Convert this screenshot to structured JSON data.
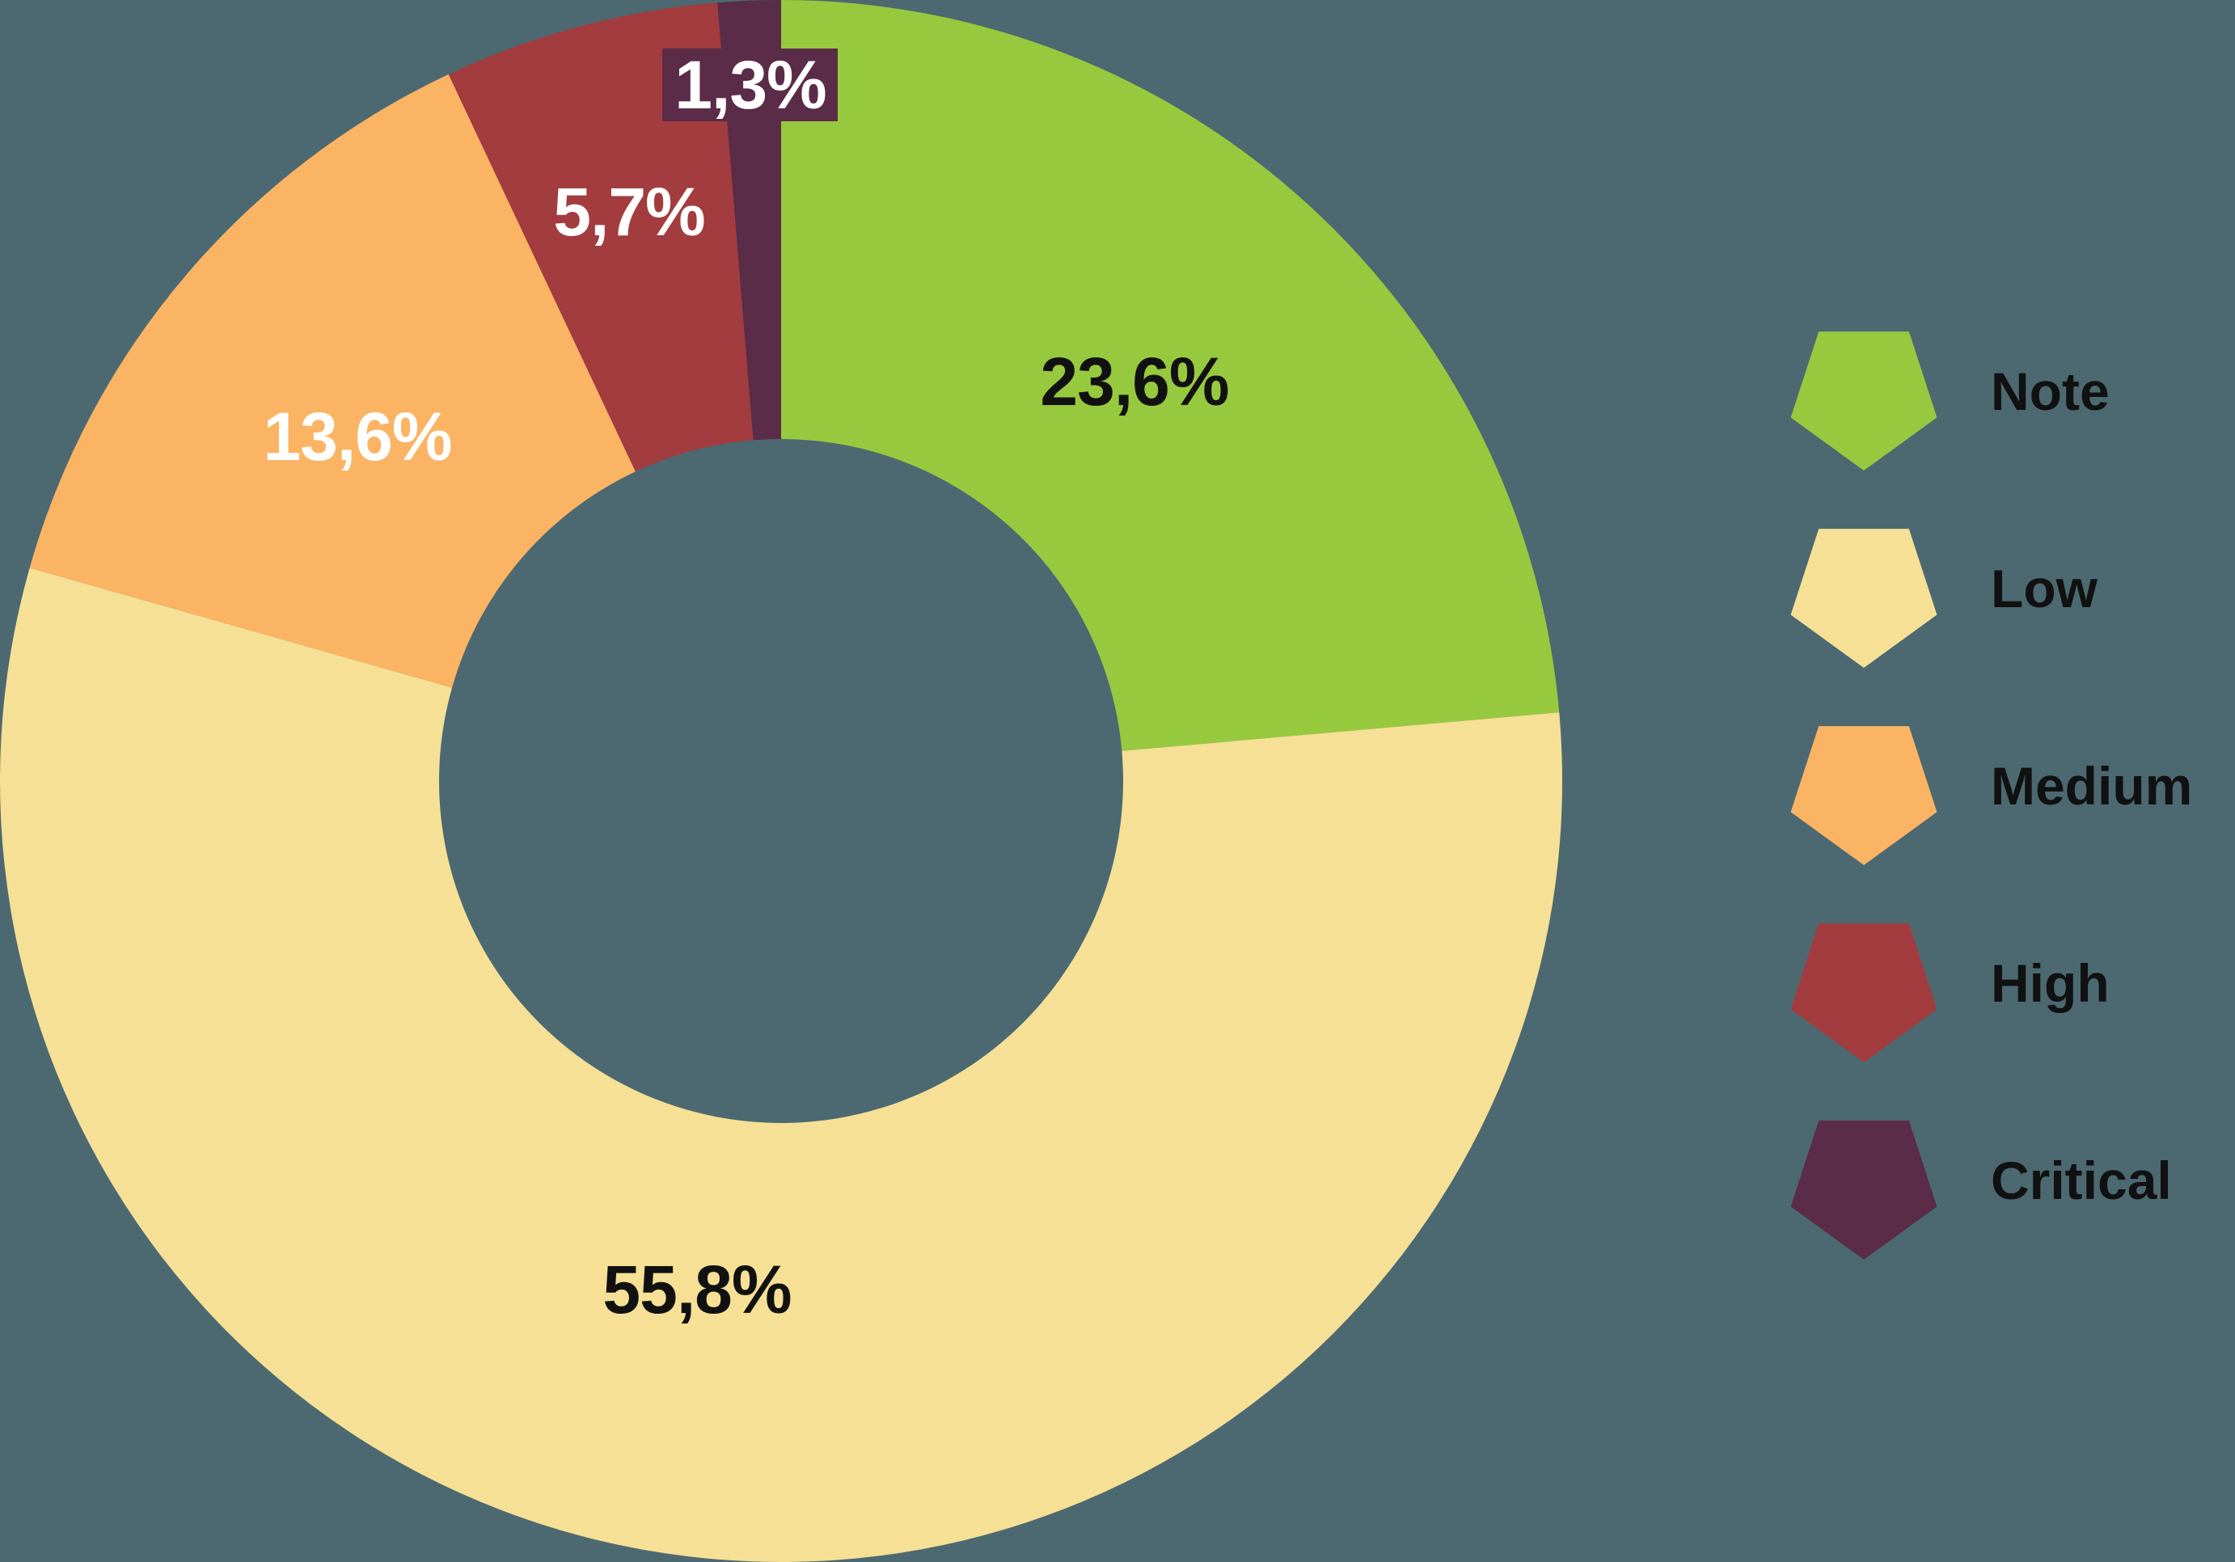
{
  "chart_data": {
    "type": "pie",
    "subtype": "donut",
    "title": "",
    "categories": [
      "Note",
      "Low",
      "Medium",
      "High",
      "Critical"
    ],
    "values": [
      23.6,
      55.8,
      13.6,
      5.7,
      1.3
    ],
    "unit": "%",
    "decimal_separator": ",",
    "start_angle_deg": 0,
    "direction": "clockwise",
    "donut_hole_ratio": 0.438,
    "grid": false,
    "legend_position": "right",
    "legend_marker_shape": "pentagon-point-down",
    "slices": [
      {
        "name": "Note",
        "value": 23.6,
        "label": "23,6%",
        "color": "#97C93E",
        "label_color": "#111111",
        "label_boxed": false
      },
      {
        "name": "Low",
        "value": 55.8,
        "label": "55,8%",
        "color": "#F5E095",
        "label_color": "#111111",
        "label_boxed": false
      },
      {
        "name": "Medium",
        "value": 13.6,
        "label": "13,6%",
        "color": "#FBB464",
        "label_color": "#FFFFFF",
        "label_boxed": false
      },
      {
        "name": "High",
        "value": 5.7,
        "label": "5,7%",
        "color": "#A33C3E",
        "label_color": "#FFFFFF",
        "label_boxed": false
      },
      {
        "name": "Critical",
        "value": 1.3,
        "label": "1,3%",
        "color": "#5A2C48",
        "label_color": "#FFFFFF",
        "label_boxed": true
      }
    ]
  },
  "colors": {
    "background": "#4C6971",
    "legend_text": "#111111",
    "critical_label_box": "#5A2C48"
  }
}
